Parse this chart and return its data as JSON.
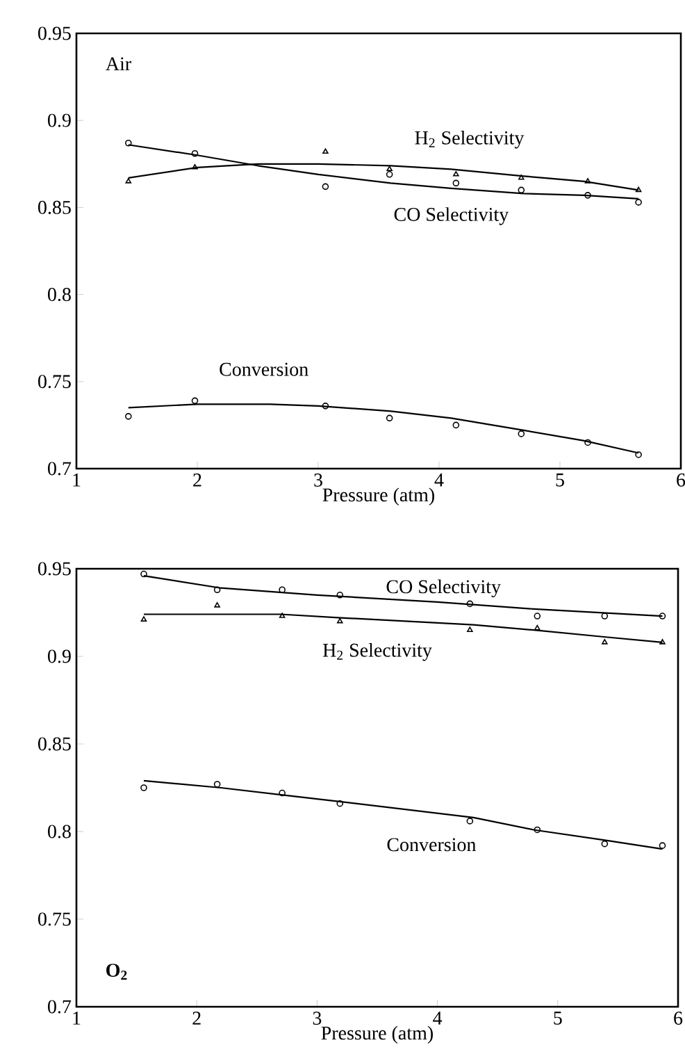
{
  "chart_data": [
    {
      "type": "scatter",
      "xlabel": "Pressure (atm)",
      "annotations": [
        "Air"
      ],
      "xlim": [
        1,
        6
      ],
      "ylim": [
        0.7,
        0.95
      ],
      "xticks": [
        1,
        2,
        3,
        4,
        5,
        6
      ],
      "yticks": [
        0.7,
        0.75,
        0.8,
        0.85,
        0.9,
        0.95
      ],
      "grid": false,
      "legend": false,
      "x": [
        1.43,
        1.98,
        3.06,
        3.59,
        4.14,
        4.68,
        5.23,
        5.65
      ],
      "series": [
        {
          "name": "CO Selectivity",
          "color": "#000000",
          "marker": "circle",
          "values": [
            0.887,
            0.881,
            0.862,
            0.869,
            0.864,
            0.86,
            0.857,
            0.853
          ]
        },
        {
          "name": "H$_{2}$ Selectivity",
          "color": "#000000",
          "marker": "triangle",
          "values": [
            0.865,
            0.873,
            0.882,
            0.872,
            0.869,
            0.867,
            0.865,
            0.86
          ]
        },
        {
          "name": "Conversion",
          "color": "#000000",
          "marker": "circle",
          "values": [
            0.73,
            0.739,
            0.736,
            0.729,
            0.725,
            0.72,
            0.715,
            0.708
          ]
        },
        {
          "type": "line",
          "color": "#000000",
          "marker": "none",
          "x": [
            1.43,
            2,
            2.5,
            3,
            3.6,
            4.1,
            4.7,
            5.2,
            5.65
          ],
          "values": [
            0.886,
            0.88,
            0.874,
            0.869,
            0.864,
            0.861,
            0.858,
            0.857,
            0.855
          ]
        },
        {
          "type": "line",
          "color": "#000000",
          "marker": "none",
          "x": [
            1.43,
            2,
            2.5,
            3,
            3.6,
            4.1,
            4.7,
            5.2,
            5.65
          ],
          "values": [
            0.867,
            0.873,
            0.875,
            0.875,
            0.874,
            0.872,
            0.868,
            0.865,
            0.86
          ]
        },
        {
          "type": "line",
          "color": "#000000",
          "marker": "none",
          "x": [
            1.43,
            2,
            2.6,
            3,
            3.6,
            4.1,
            4.7,
            5.2,
            5.65
          ],
          "values": [
            0.735,
            0.737,
            0.737,
            0.736,
            0.733,
            0.729,
            0.722,
            0.716,
            0.709
          ]
        }
      ]
    },
    {
      "type": "scatter",
      "xlabel": "Pressure (atm)",
      "annotations": [
        "O$_{2}$"
      ],
      "xlim": [
        1,
        6
      ],
      "ylim": [
        0.7,
        0.95
      ],
      "xticks": [
        1,
        2,
        3,
        4,
        5,
        6
      ],
      "yticks": [
        0.7,
        0.75,
        0.8,
        0.85,
        0.9,
        0.95
      ],
      "grid": false,
      "legend": false,
      "x": [
        1.56,
        2.17,
        2.71,
        3.19,
        4.27,
        4.83,
        5.39,
        5.87
      ],
      "series": [
        {
          "name": "CO Selectivity",
          "color": "#000000",
          "marker": "circle",
          "values": [
            0.947,
            0.938,
            0.938,
            0.935,
            0.93,
            0.923,
            0.923,
            0.923
          ]
        },
        {
          "name": "H$_{2}$ Selectivity",
          "color": "#000000",
          "marker": "triangle",
          "values": [
            0.921,
            0.929,
            0.923,
            0.92,
            0.915,
            0.916,
            0.908,
            0.908
          ]
        },
        {
          "name": "Conversion",
          "color": "#000000",
          "marker": "circle",
          "values": [
            0.825,
            0.827,
            0.822,
            0.816,
            0.806,
            0.801,
            0.793,
            0.792
          ]
        },
        {
          "type": "line",
          "color": "#000000",
          "marker": "none",
          "x": [
            1.56,
            2.2,
            3,
            4,
            4.8,
            5.87
          ],
          "values": [
            0.946,
            0.939,
            0.935,
            0.931,
            0.927,
            0.923
          ]
        },
        {
          "type": "line",
          "color": "#000000",
          "marker": "none",
          "x": [
            1.56,
            2.7,
            3.2,
            4.3,
            4.8,
            5.4,
            5.87
          ],
          "values": [
            0.924,
            0.924,
            0.922,
            0.918,
            0.915,
            0.911,
            0.908
          ]
        },
        {
          "type": "line",
          "color": "#000000",
          "marker": "none",
          "x": [
            1.56,
            2.2,
            2.7,
            3.2,
            4.3,
            4.8,
            5.4,
            5.87
          ],
          "values": [
            0.829,
            0.825,
            0.821,
            0.817,
            0.808,
            0.801,
            0.795,
            0.79
          ]
        }
      ]
    }
  ]
}
